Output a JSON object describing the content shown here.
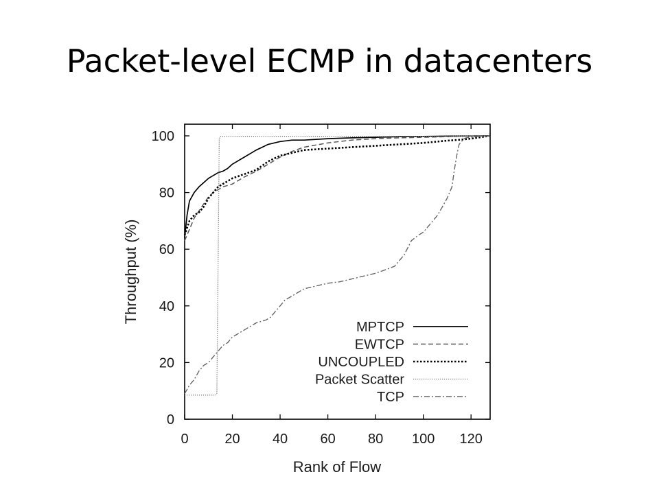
{
  "slide": {
    "title": "Packet-level ECMP in datacenters"
  },
  "chart_data": {
    "type": "line",
    "title": "",
    "xlabel": "Rank of Flow",
    "ylabel": "Throughput (%)",
    "xlim": [
      0,
      128
    ],
    "ylim": [
      0,
      100
    ],
    "x_ticks": [
      0,
      20,
      40,
      60,
      80,
      100,
      120
    ],
    "y_ticks": [
      0,
      20,
      40,
      60,
      80,
      100
    ],
    "grid": false,
    "legend": "bottom-right",
    "series": [
      {
        "name": "MPTCP",
        "color": "#000000",
        "dash": "solid",
        "x": [
          0,
          1,
          2,
          4,
          6,
          8,
          10,
          12,
          14,
          16,
          18,
          20,
          25,
          30,
          35,
          40,
          45,
          50,
          60,
          70,
          80,
          90,
          100,
          110,
          120,
          128
        ],
        "y": [
          64,
          72,
          77,
          80,
          82,
          83.5,
          85,
          86,
          87,
          87.5,
          88.5,
          90,
          92.5,
          95,
          97,
          98,
          98.5,
          98.5,
          99,
          99.3,
          99.5,
          99.7,
          99.8,
          99.9,
          99.95,
          100
        ]
      },
      {
        "name": "EWTCP",
        "color": "#555555",
        "dash": "dashed",
        "x": [
          0,
          2,
          4,
          6,
          8,
          10,
          12,
          14,
          16,
          18,
          20,
          25,
          30,
          35,
          40,
          45,
          50,
          60,
          70,
          80,
          90,
          100,
          110,
          115,
          120,
          128
        ],
        "y": [
          63,
          67,
          71,
          73.5,
          76,
          78.5,
          80,
          81,
          82,
          82.5,
          83,
          85.5,
          87.5,
          90,
          92.5,
          94.5,
          96,
          97.5,
          98.5,
          99,
          99.3,
          99.5,
          99.7,
          99.8,
          99.9,
          100
        ]
      },
      {
        "name": "UNCOUPLED",
        "color": "#000000",
        "dash": "dotted",
        "x": [
          0,
          2,
          4,
          6,
          8,
          10,
          12,
          14,
          16,
          18,
          20,
          25,
          30,
          35,
          40,
          45,
          50,
          60,
          70,
          80,
          90,
          100,
          110,
          115,
          120,
          128
        ],
        "y": [
          65,
          70,
          72,
          73,
          75,
          78,
          80,
          82,
          83,
          84,
          85,
          86.5,
          88,
          91,
          93,
          94,
          95,
          95.5,
          96,
          96.5,
          97,
          97.5,
          98.3,
          98.6,
          99,
          100
        ]
      },
      {
        "name": "Packet Scatter",
        "color": "#777777",
        "dash": "finedot",
        "x": [
          0,
          13,
          13.5,
          14.5,
          15,
          30,
          60,
          90,
          128
        ],
        "y": [
          8.5,
          8.5,
          9,
          99,
          99.8,
          99.8,
          99.8,
          99.8,
          100
        ]
      },
      {
        "name": "TCP",
        "color": "#666666",
        "dash": "dashdot",
        "x": [
          0,
          2,
          4,
          6,
          8,
          10,
          12,
          14,
          16,
          18,
          20,
          22,
          24,
          26,
          28,
          30,
          32,
          34,
          36,
          38,
          40,
          42,
          44,
          46,
          48,
          50,
          55,
          60,
          65,
          70,
          75,
          80,
          85,
          88,
          90,
          92,
          95,
          98,
          100,
          102,
          104,
          106,
          108,
          110,
          112,
          113,
          114,
          115,
          116,
          117,
          118,
          120,
          124,
          128
        ],
        "y": [
          9,
          12,
          14,
          17,
          19,
          20,
          22,
          24,
          26,
          27,
          29,
          30,
          31,
          32,
          33,
          34,
          34.5,
          35,
          36,
          38,
          40,
          42,
          43,
          44,
          45,
          46,
          47,
          48,
          48.5,
          49.5,
          50.5,
          51.5,
          53,
          54,
          56,
          58,
          63,
          65,
          66,
          68,
          70,
          72,
          75,
          78,
          82,
          88,
          93,
          97,
          98,
          99,
          99.3,
          99.6,
          99.8,
          100
        ]
      }
    ]
  }
}
